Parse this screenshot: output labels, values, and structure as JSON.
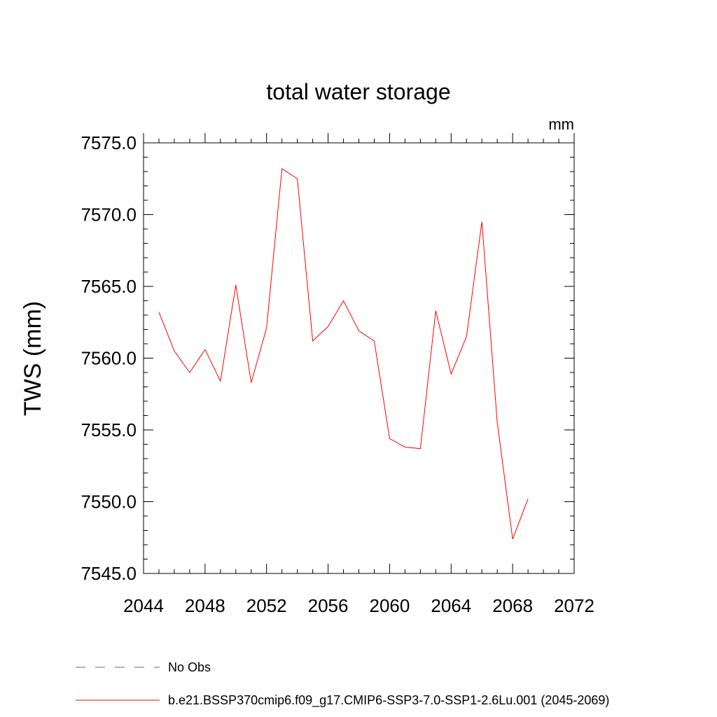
{
  "chart_data": {
    "type": "line",
    "title": "total water storage",
    "units_label": "mm",
    "ylabel": "TWS  (mm)",
    "xlabel": "",
    "xlim": [
      2044,
      2072
    ],
    "ylim": [
      7545.0,
      7575.0
    ],
    "x_ticks": [
      "2044",
      "2048",
      "2052",
      "2056",
      "2060",
      "2064",
      "2068",
      "2072"
    ],
    "y_ticks": [
      "7545.0",
      "7550.0",
      "7555.0",
      "7560.0",
      "7565.0",
      "7570.0",
      "7575.0"
    ],
    "x": [
      2045,
      2046,
      2047,
      2048,
      2049,
      2050,
      2051,
      2052,
      2053,
      2054,
      2055,
      2056,
      2057,
      2058,
      2059,
      2060,
      2061,
      2062,
      2063,
      2064,
      2065,
      2066,
      2067,
      2068,
      2069
    ],
    "series": [
      {
        "name": "b.e21.BSSP370cmip6.f09_g17.CMIP6-SSP3-7.0-SSP1-2.6Lu.001 (2045-2069)",
        "color": "#ff0000",
        "values": [
          7563.2,
          7560.5,
          7559.0,
          7560.6,
          7558.4,
          7565.1,
          7558.3,
          7562.1,
          7573.2,
          7572.5,
          7561.2,
          7562.2,
          7564.0,
          7561.9,
          7561.2,
          7554.4,
          7553.8,
          7553.7,
          7563.3,
          7558.9,
          7561.5,
          7569.5,
          7555.5,
          7547.4,
          7550.2
        ]
      }
    ],
    "legend": [
      {
        "label": "No Obs",
        "color": "#6a5acd",
        "dashed": true
      },
      {
        "label": "b.e21.BSSP370cmip6.f09_g17.CMIP6-SSP3-7.0-SSP1-2.6Lu.001 (2045-2069)",
        "color": "#ff0000",
        "dashed": false
      }
    ],
    "legend_position": "bottom",
    "grid": false
  }
}
